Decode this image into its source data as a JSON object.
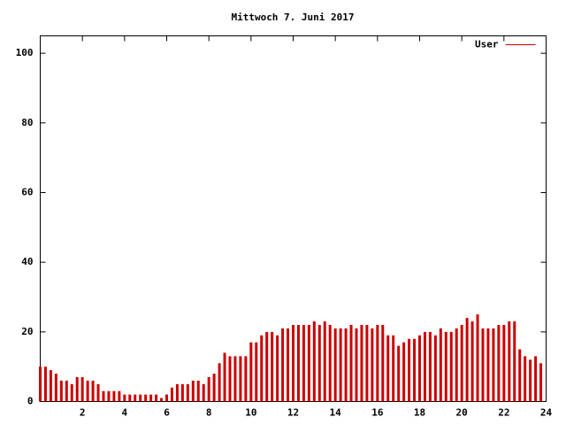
{
  "chart_data": {
    "type": "impulse",
    "title": "Mittwoch 7. Juni 2017",
    "x": [
      0,
      0.25,
      0.5,
      0.75,
      1,
      1.25,
      1.5,
      1.75,
      2,
      2.25,
      2.5,
      2.75,
      3,
      3.25,
      3.5,
      3.75,
      4,
      4.25,
      4.5,
      4.75,
      5,
      5.25,
      5.5,
      5.75,
      6,
      6.25,
      6.5,
      6.75,
      7,
      7.25,
      7.5,
      7.75,
      8,
      8.25,
      8.5,
      8.75,
      9,
      9.25,
      9.5,
      9.75,
      10,
      10.25,
      10.5,
      10.75,
      11,
      11.25,
      11.5,
      11.75,
      12,
      12.25,
      12.5,
      12.75,
      13,
      13.25,
      13.5,
      13.75,
      14,
      14.25,
      14.5,
      14.75,
      15,
      15.25,
      15.5,
      15.75,
      16,
      16.25,
      16.5,
      16.75,
      17,
      17.25,
      17.5,
      17.75,
      18,
      18.25,
      18.5,
      18.75,
      19,
      19.25,
      19.5,
      19.75,
      20,
      20.25,
      20.5,
      20.75,
      21,
      21.25,
      21.5,
      21.75,
      22,
      22.25,
      22.5,
      22.75,
      23,
      23.25,
      23.5,
      23.75
    ],
    "series": [
      {
        "name": "User",
        "color": "#cc0000",
        "values": [
          10,
          10,
          9,
          8,
          6,
          6,
          5,
          7,
          7,
          6,
          6,
          5,
          3,
          3,
          3,
          3,
          2,
          2,
          2,
          2,
          2,
          2,
          2,
          1,
          2,
          4,
          5,
          5,
          5,
          6,
          6,
          5,
          7,
          8,
          11,
          14,
          13,
          13,
          13,
          13,
          17,
          17,
          19,
          20,
          20,
          19,
          21,
          21,
          22,
          22,
          22,
          22,
          23,
          22,
          23,
          22,
          21,
          21,
          21,
          22,
          21,
          22,
          22,
          21,
          22,
          22,
          19,
          19,
          16,
          17,
          18,
          18,
          19,
          20,
          20,
          19,
          21,
          20,
          20,
          21,
          22,
          24,
          23,
          25,
          21,
          21,
          21,
          22,
          22,
          23,
          23,
          15,
          13,
          12,
          13,
          11
        ]
      }
    ],
    "xlim": [
      0,
      24
    ],
    "xticks": [
      2,
      4,
      6,
      8,
      10,
      12,
      14,
      16,
      18,
      20,
      22,
      24
    ],
    "ylim": [
      0,
      105
    ],
    "yticks": [
      0,
      20,
      40,
      60,
      80,
      100
    ],
    "legend": "upper right"
  }
}
